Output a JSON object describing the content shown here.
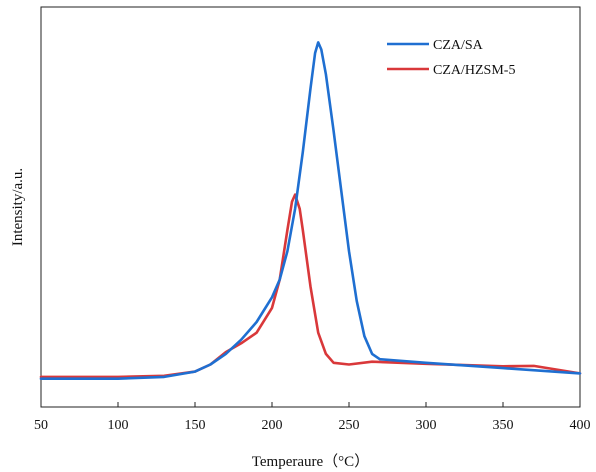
{
  "chart_data": {
    "type": "line",
    "title": "",
    "xlabel": "Temperaure（°C）",
    "ylabel": "Intensity/a.u.",
    "xlim": [
      50,
      400
    ],
    "xticks": [
      50,
      100,
      150,
      200,
      250,
      300,
      350,
      400
    ],
    "y_ticks_shown": false,
    "grid": false,
    "legend_position": "top-right",
    "series": [
      {
        "name": "CZA/SA",
        "color": "#1f6fd1",
        "points": [
          [
            50,
            0.02
          ],
          [
            100,
            0.02
          ],
          [
            130,
            0.025
          ],
          [
            150,
            0.04
          ],
          [
            160,
            0.06
          ],
          [
            170,
            0.09
          ],
          [
            180,
            0.13
          ],
          [
            190,
            0.18
          ],
          [
            200,
            0.25
          ],
          [
            205,
            0.3
          ],
          [
            210,
            0.38
          ],
          [
            215,
            0.5
          ],
          [
            220,
            0.66
          ],
          [
            225,
            0.84
          ],
          [
            228,
            0.94
          ],
          [
            230,
            0.97
          ],
          [
            232,
            0.95
          ],
          [
            235,
            0.88
          ],
          [
            240,
            0.72
          ],
          [
            245,
            0.55
          ],
          [
            250,
            0.38
          ],
          [
            255,
            0.24
          ],
          [
            260,
            0.14
          ],
          [
            265,
            0.09
          ],
          [
            270,
            0.075
          ],
          [
            300,
            0.065
          ],
          [
            350,
            0.05
          ],
          [
            400,
            0.035
          ]
        ]
      },
      {
        "name": "CZA/HZSM-5",
        "color": "#d9383a",
        "points": [
          [
            50,
            0.025
          ],
          [
            100,
            0.025
          ],
          [
            130,
            0.028
          ],
          [
            150,
            0.04
          ],
          [
            160,
            0.06
          ],
          [
            170,
            0.095
          ],
          [
            180,
            0.12
          ],
          [
            190,
            0.15
          ],
          [
            200,
            0.22
          ],
          [
            205,
            0.3
          ],
          [
            210,
            0.44
          ],
          [
            213,
            0.52
          ],
          [
            215,
            0.54
          ],
          [
            218,
            0.5
          ],
          [
            220,
            0.44
          ],
          [
            225,
            0.28
          ],
          [
            230,
            0.15
          ],
          [
            235,
            0.09
          ],
          [
            240,
            0.065
          ],
          [
            250,
            0.06
          ],
          [
            265,
            0.068
          ],
          [
            300,
            0.062
          ],
          [
            350,
            0.055
          ],
          [
            370,
            0.056
          ],
          [
            400,
            0.035
          ]
        ]
      }
    ]
  }
}
